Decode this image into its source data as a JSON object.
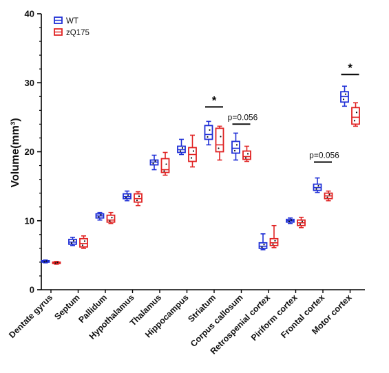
{
  "chart_data": {
    "type": "box",
    "ylabel": "Volume(mm³)",
    "xlabel": "",
    "ylim": [
      0,
      40
    ],
    "yticks": [
      "0",
      "10",
      "20",
      "30",
      "40"
    ],
    "grid": false,
    "legend_position": "top-left",
    "categories": [
      "Dentate gyrus",
      "Septum",
      "Pallidum",
      "Hypothalamus",
      "Thalamus",
      "Hippocampus",
      "Striatum",
      "Corpus callosum",
      "Retrospenial cortex",
      "Piriform cortex",
      "Frontal cortex",
      "Motor cortex"
    ],
    "series": [
      {
        "name": "WT",
        "color": "#1f2fd6",
        "boxes": [
          {
            "min": 3.9,
            "q1": 4.0,
            "median": 4.1,
            "q3": 4.2,
            "max": 4.3
          },
          {
            "min": 6.4,
            "q1": 6.6,
            "median": 6.9,
            "q3": 7.3,
            "max": 7.6
          },
          {
            "min": 10.1,
            "q1": 10.4,
            "median": 10.7,
            "q3": 11.0,
            "max": 11.2
          },
          {
            "min": 12.9,
            "q1": 13.2,
            "median": 13.5,
            "q3": 13.9,
            "max": 14.3
          },
          {
            "min": 17.4,
            "q1": 18.1,
            "median": 18.5,
            "q3": 18.8,
            "max": 19.5
          },
          {
            "min": 19.6,
            "q1": 19.9,
            "median": 20.3,
            "q3": 20.8,
            "max": 21.8
          },
          {
            "min": 21.0,
            "q1": 21.8,
            "median": 22.5,
            "q3": 23.8,
            "max": 24.4
          },
          {
            "min": 18.8,
            "q1": 19.8,
            "median": 20.5,
            "q3": 21.5,
            "max": 22.7
          },
          {
            "min": 5.8,
            "q1": 6.0,
            "median": 6.3,
            "q3": 6.8,
            "max": 8.1
          },
          {
            "min": 9.6,
            "q1": 9.8,
            "median": 10.0,
            "q3": 10.2,
            "max": 10.4
          },
          {
            "min": 14.1,
            "q1": 14.4,
            "median": 14.8,
            "q3": 15.3,
            "max": 16.2
          },
          {
            "min": 26.6,
            "q1": 27.2,
            "median": 28.0,
            "q3": 28.7,
            "max": 29.5
          }
        ]
      },
      {
        "name": "zQ175",
        "color": "#e02222",
        "boxes": [
          {
            "min": 3.7,
            "q1": 3.8,
            "median": 3.9,
            "q3": 4.0,
            "max": 4.1
          },
          {
            "min": 6.0,
            "q1": 6.2,
            "median": 6.7,
            "q3": 7.4,
            "max": 7.8
          },
          {
            "min": 9.6,
            "q1": 9.8,
            "median": 10.1,
            "q3": 10.8,
            "max": 11.2
          },
          {
            "min": 12.2,
            "q1": 12.7,
            "median": 13.2,
            "q3": 13.9,
            "max": 14.2
          },
          {
            "min": 16.6,
            "q1": 17.0,
            "median": 17.4,
            "q3": 19.0,
            "max": 19.9
          },
          {
            "min": 17.8,
            "q1": 18.6,
            "median": 19.6,
            "q3": 20.6,
            "max": 22.4
          },
          {
            "min": 18.8,
            "q1": 20.0,
            "median": 21.0,
            "q3": 23.4,
            "max": 23.7
          },
          {
            "min": 18.6,
            "q1": 18.9,
            "median": 19.3,
            "q3": 20.1,
            "max": 20.8
          },
          {
            "min": 6.1,
            "q1": 6.4,
            "median": 6.8,
            "q3": 7.4,
            "max": 9.3
          },
          {
            "min": 9.0,
            "q1": 9.3,
            "median": 9.7,
            "q3": 10.1,
            "max": 10.5
          },
          {
            "min": 12.9,
            "q1": 13.2,
            "median": 13.6,
            "q3": 14.0,
            "max": 14.3
          },
          {
            "min": 23.7,
            "q1": 24.0,
            "median": 25.0,
            "q3": 26.4,
            "max": 27.1
          }
        ]
      }
    ],
    "annotations": [
      {
        "text": "*",
        "category_index": 6,
        "y": 26.5,
        "type": "star"
      },
      {
        "text": "p=0.056",
        "category_index": 7,
        "y": 24.0,
        "type": "p"
      },
      {
        "text": "p=0.056",
        "category_index": 10,
        "y": 18.5,
        "type": "p"
      },
      {
        "text": "*",
        "category_index": 11,
        "y": 31.2,
        "type": "star"
      }
    ]
  }
}
